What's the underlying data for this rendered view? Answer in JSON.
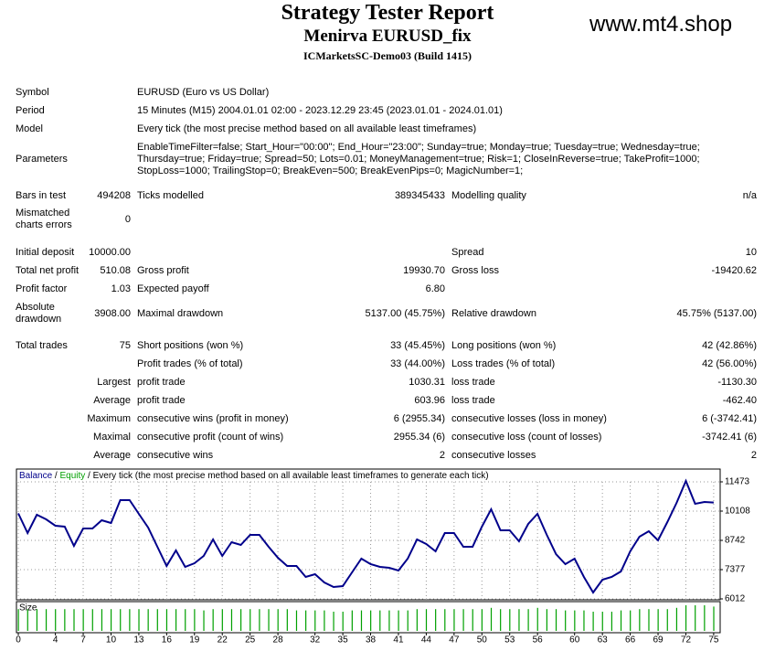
{
  "header": {
    "title": "Strategy Tester Report",
    "subtitle": "Menirva EURUSD_fix",
    "server": "ICMarketsSC-Demo03 (Build 1415)",
    "site": "www.mt4.shop"
  },
  "table": {
    "rows": [
      {
        "label": "Symbol",
        "text": "EURUSD (Euro vs US Dollar)"
      },
      {
        "label": "Period",
        "text": "15 Minutes (M15) 2004.01.01 02:00 - 2023.12.29 23:45 (2023.01.01 - 2024.01.01)"
      },
      {
        "label": "Model",
        "text": "Every tick (the most precise method based on all available least timeframes)"
      },
      {
        "label": "Parameters",
        "text": [
          "EnableTimeFilter=false; Start_Hour=\"00:00\"; End_Hour=\"23:00\"; Sunday=true; Monday=true; Tuesday=true; Wednesday=true;",
          "Thursday=true; Friday=true; Spread=50; Lots=0.01; MoneyManagement=true; Risk=1; CloseInReverse=true; TakeProfit=1000;",
          "StopLoss=1000; TrailingStop=0; BreakEven=500; BreakEvenPips=0; MagicNumber=1;"
        ]
      },
      {
        "label": "Bars in test",
        "value": "494208",
        "label2": "Ticks modelled",
        "value2": "389345433",
        "label3": "Modelling quality",
        "value3": "n/a"
      },
      {
        "label": "Mismatched charts errors",
        "value": "0"
      },
      {
        "label": "Initial deposit",
        "value": "10000.00",
        "label3": "Spread",
        "value3": "10"
      },
      {
        "label": "Total net profit",
        "value": "510.08",
        "label2": "Gross profit",
        "value2": "19930.70",
        "label3": "Gross loss",
        "value3": "-19420.62"
      },
      {
        "label": "Profit factor",
        "value": "1.03",
        "label2": "Expected payoff",
        "value2": "6.80"
      },
      {
        "label": "Absolute drawdown",
        "value": "3908.00",
        "label2": "Maximal drawdown",
        "value2": "5137.00 (45.75%)",
        "label3": "Relative drawdown",
        "value3": "45.75% (5137.00)"
      },
      {
        "label": "Total trades",
        "value": "75",
        "label2": "Short positions (won %)",
        "value2": "33 (45.45%)",
        "label3": "Long positions (won %)",
        "value3": "42 (42.86%)"
      },
      {
        "label2": "Profit trades (% of total)",
        "value2": "33 (44.00%)",
        "label3": "Loss trades (% of total)",
        "value3": "42 (56.00%)"
      },
      {
        "prefix": "Largest",
        "label2": "profit trade",
        "value2": "1030.31",
        "label3": "loss trade",
        "value3": "-1130.30"
      },
      {
        "prefix": "Average",
        "label2": "profit trade",
        "value2": "603.96",
        "label3": "loss trade",
        "value3": "-462.40"
      },
      {
        "prefix": "Maximum",
        "label2": "consecutive wins (profit in money)",
        "value2": "6 (2955.34)",
        "label3": "consecutive losses (loss in money)",
        "value3": "6 (-3742.41)"
      },
      {
        "prefix": "Maximal",
        "label2": "consecutive profit (count of wins)",
        "value2": "2955.34 (6)",
        "label3": "consecutive loss (count of losses)",
        "value3": "-3742.41 (6)"
      },
      {
        "prefix": "Average",
        "label2": "consecutive wins",
        "value2": "2",
        "label3": "consecutive losses",
        "value3": "2"
      }
    ]
  },
  "chart_data": {
    "type": "line",
    "equity_label": "Equity",
    "equity_color": "#00a000",
    "subtitle": "Every tick (the most precise method based on all available least timeframes to generate each tick)",
    "series": [
      {
        "name": "Balance",
        "color": "#00008b",
        "values": [
          10000,
          9084,
          9937,
          9724,
          9425,
          9383,
          8487,
          9297,
          9297,
          9681,
          9553,
          10620,
          10620,
          9980,
          9340,
          8444,
          7548,
          8273,
          7505,
          7676,
          8017,
          8785,
          8017,
          8657,
          8529,
          8999,
          8999,
          8444,
          7932,
          7548,
          7548,
          7036,
          7164,
          6780,
          6567,
          6609,
          7249,
          7889,
          7633,
          7505,
          7463,
          7335,
          7889,
          8785,
          8572,
          8230,
          9084,
          9084,
          8444,
          8444,
          9383,
          10193,
          9212,
          9212,
          8700,
          9510,
          9980,
          8999,
          8102,
          7633,
          7889,
          7036,
          6311,
          6908,
          7036,
          7292,
          8230,
          8913,
          9169,
          8742,
          9596,
          10492,
          11516,
          10449,
          10534,
          10510
        ]
      }
    ],
    "size": {
      "name": "Size",
      "color": "#00a000",
      "ylim": [
        0,
        1
      ],
      "values": [
        0.85,
        0.85,
        0.85,
        0.85,
        0.85,
        0.85,
        0.85,
        0.85,
        0.85,
        0.85,
        0.85,
        0.85,
        0.85,
        0.85,
        0.85,
        0.85,
        0.85,
        0.85,
        0.85,
        0.85,
        0.8,
        0.85,
        0.85,
        0.85,
        0.85,
        0.85,
        0.85,
        0.85,
        0.85,
        0.85,
        0.8,
        0.8,
        0.8,
        0.8,
        0.75,
        0.75,
        0.8,
        0.8,
        0.8,
        0.8,
        0.8,
        0.8,
        0.8,
        0.85,
        0.85,
        0.85,
        0.85,
        0.85,
        0.85,
        0.85,
        0.85,
        0.9,
        0.85,
        0.85,
        0.85,
        0.85,
        0.9,
        0.85,
        0.85,
        0.8,
        0.8,
        0.8,
        0.75,
        0.75,
        0.75,
        0.8,
        0.8,
        0.85,
        0.85,
        0.85,
        0.85,
        0.9,
        1,
        1,
        1,
        0.95
      ]
    },
    "xlim": [
      -0.2,
      75.7
    ],
    "xticks": [
      0,
      4,
      7,
      10,
      13,
      16,
      19,
      22,
      25,
      28,
      32,
      35,
      38,
      41,
      44,
      47,
      50,
      53,
      56,
      60,
      63,
      66,
      69,
      72,
      75
    ],
    "ylim": [
      5969,
      12070
    ],
    "yticks": [
      6012,
      7377,
      8742,
      10108,
      11473
    ],
    "grid": true
  }
}
